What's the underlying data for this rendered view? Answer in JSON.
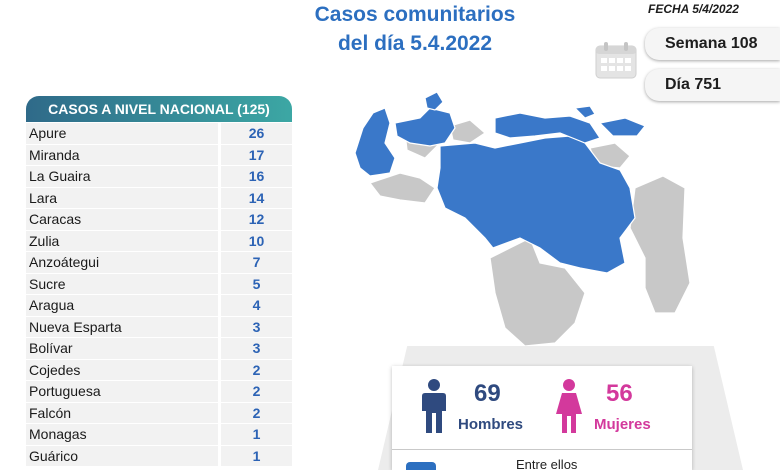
{
  "header": {
    "title_line1": "Casos comunitarios",
    "title_line2": "del día 5.4.2022",
    "fecha": "FECHA 5/4/2022",
    "semana": "Semana 108",
    "dia": "Día 751"
  },
  "national": {
    "header": "CASOS A NIVEL NACIONAL  (125)",
    "rows": [
      {
        "name": "Apure",
        "value": "26"
      },
      {
        "name": "Miranda",
        "value": "17"
      },
      {
        "name": "La Guaira",
        "value": "16"
      },
      {
        "name": "Lara",
        "value": "14"
      },
      {
        "name": "Caracas",
        "value": "12"
      },
      {
        "name": "Zulia",
        "value": "10"
      },
      {
        "name": "Anzoátegui",
        "value": "7"
      },
      {
        "name": "Sucre",
        "value": "5"
      },
      {
        "name": "Aragua",
        "value": "4"
      },
      {
        "name": "Nueva Esparta",
        "value": "3"
      },
      {
        "name": "Bolívar",
        "value": "3"
      },
      {
        "name": "Cojedes",
        "value": "2"
      },
      {
        "name": "Portuguesa",
        "value": "2"
      },
      {
        "name": "Falcón",
        "value": "2"
      },
      {
        "name": "Monagas",
        "value": "1"
      },
      {
        "name": "Guárico",
        "value": "1"
      }
    ]
  },
  "gender": {
    "men_count": "69",
    "men_label": "Hombres",
    "women_count": "56",
    "women_label": "Mujeres",
    "entre": "Entre ellos"
  },
  "colors": {
    "title": "#2c6fc0",
    "map_affected": "#3a78c9",
    "map_unaffected": "#c8c8c8",
    "men": "#2f4a7f",
    "women": "#d3399c"
  },
  "icons": {
    "calendar": "calendar-icon",
    "men": "man-icon",
    "women": "woman-icon"
  }
}
